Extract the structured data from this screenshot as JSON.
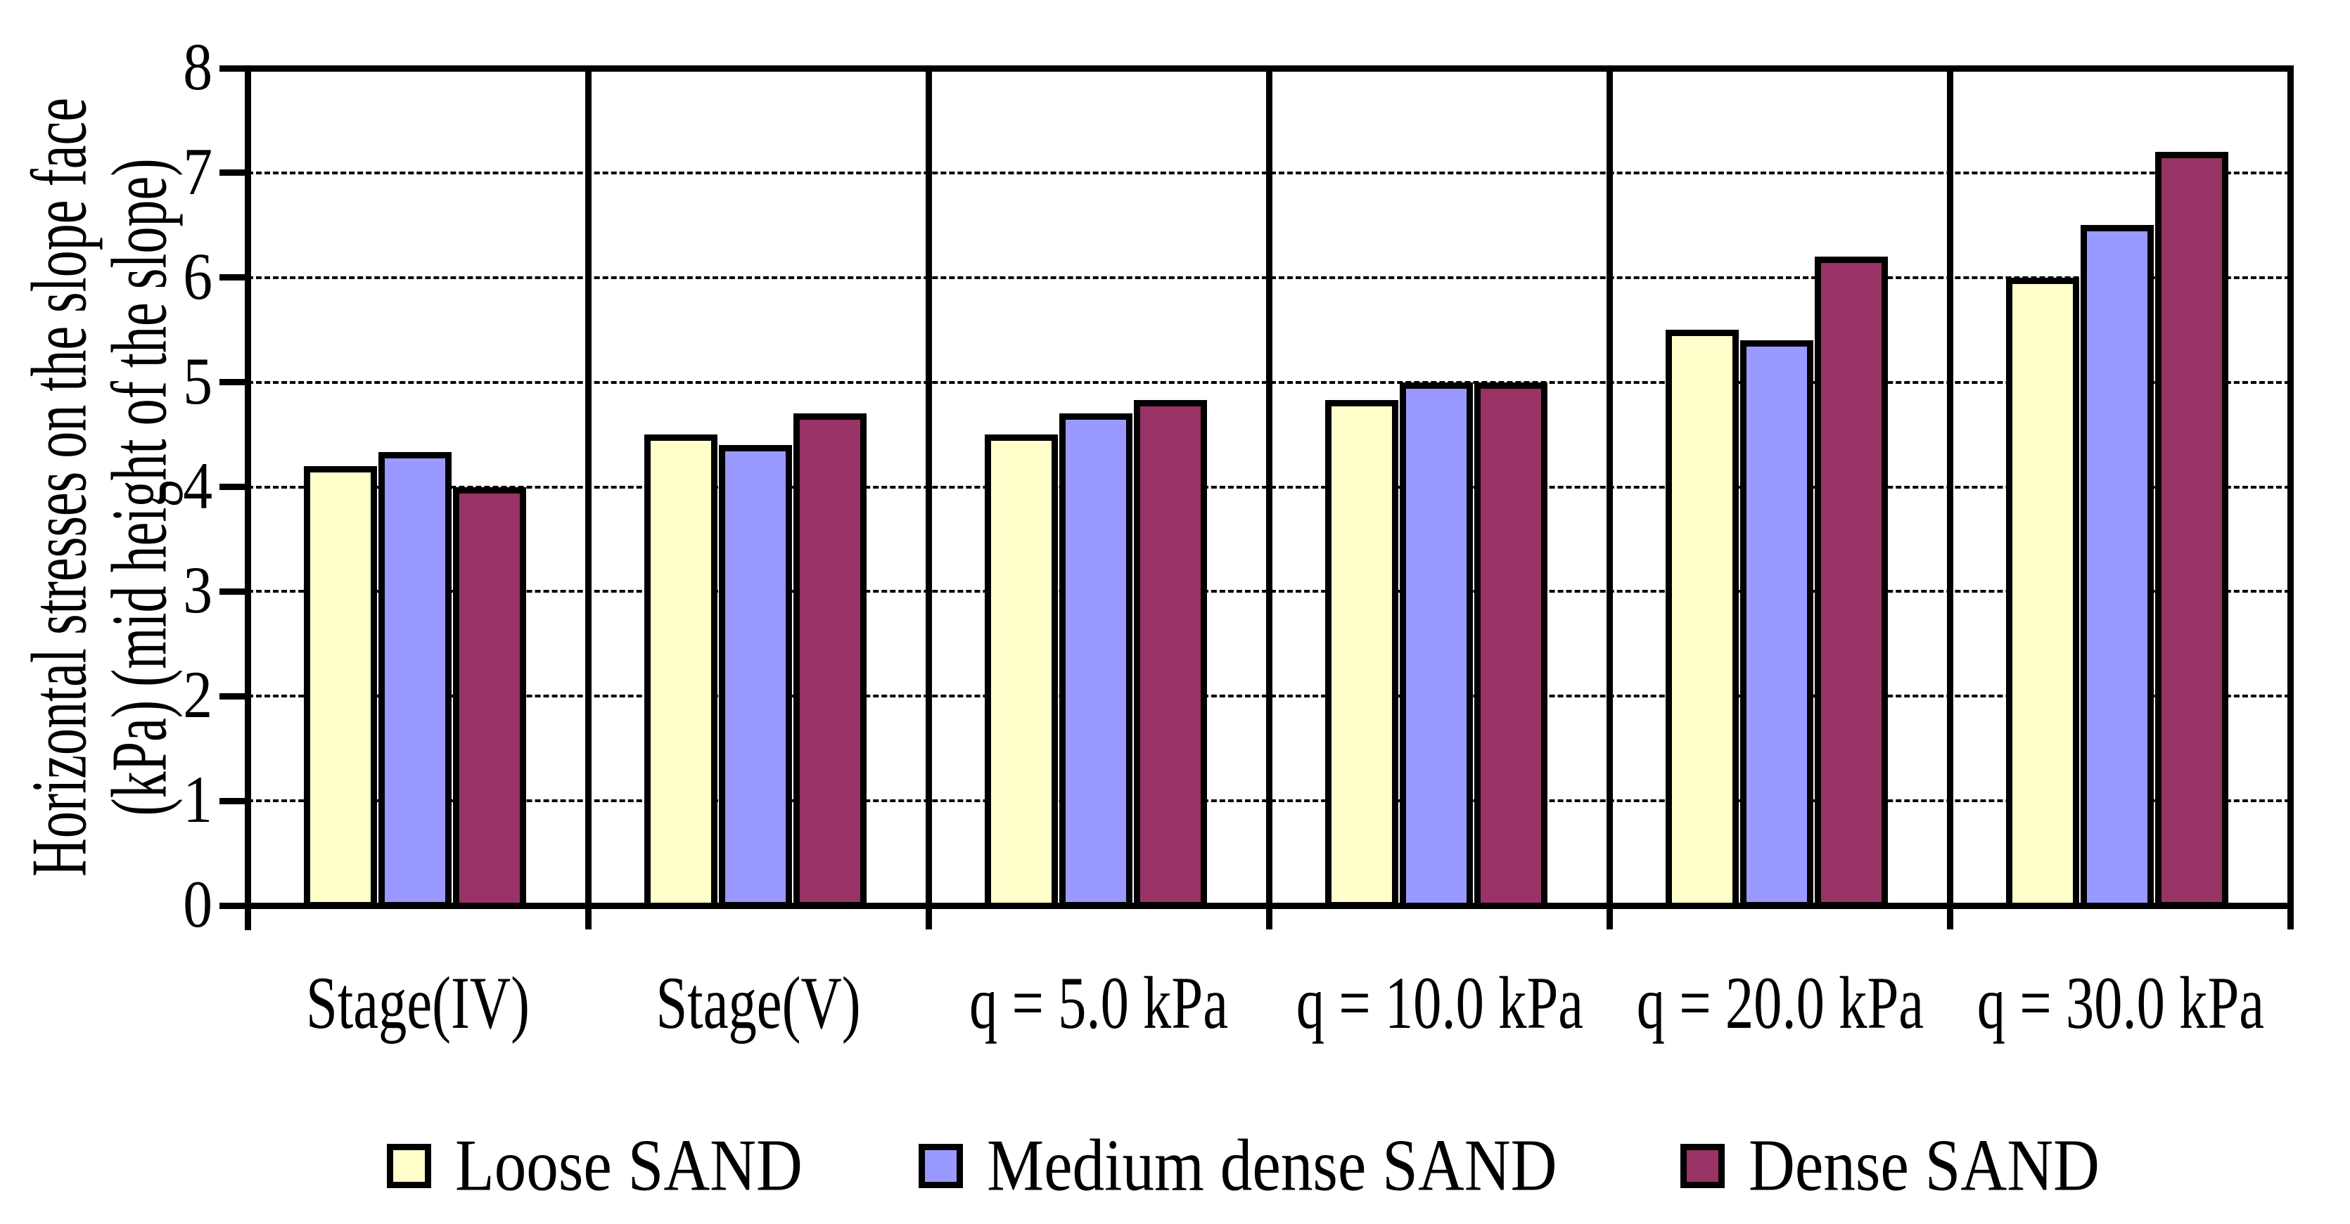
{
  "chart_data": {
    "type": "bar",
    "title": "",
    "ylabel_line1": "Horizontal stresses on the slope face",
    "ylabel_line2": "(kPa) (mid height of the slope)",
    "xlabel": "",
    "categories": [
      "Stage(IV)",
      "Stage(V)",
      "q = 5.0 kPa",
      "q = 10.0 kPa",
      "q = 20.0 kPa",
      "q = 30.0 kPa"
    ],
    "series": [
      {
        "name": "Loose SAND",
        "color": "#FFFFCC",
        "values": [
          4.2,
          4.5,
          4.5,
          4.83,
          5.5,
          6.0
        ]
      },
      {
        "name": "Medium dense SAND",
        "color": "#9999FF",
        "values": [
          4.33,
          4.4,
          4.7,
          5.0,
          5.4,
          6.5
        ]
      },
      {
        "name": "Dense SAND",
        "color": "#993366",
        "values": [
          4.0,
          4.7,
          4.83,
          5.0,
          6.2,
          7.2
        ]
      }
    ],
    "ylim": [
      0,
      8
    ],
    "yticks": [
      0,
      1,
      2,
      3,
      4,
      5,
      6,
      7,
      8
    ],
    "grid": "horizontal dashed lines at each integer, vertical solid separators between categories",
    "legend_position": "bottom",
    "bar_border_color": "#000000",
    "axis_color": "#000000",
    "background_color": "#FFFFFF"
  }
}
